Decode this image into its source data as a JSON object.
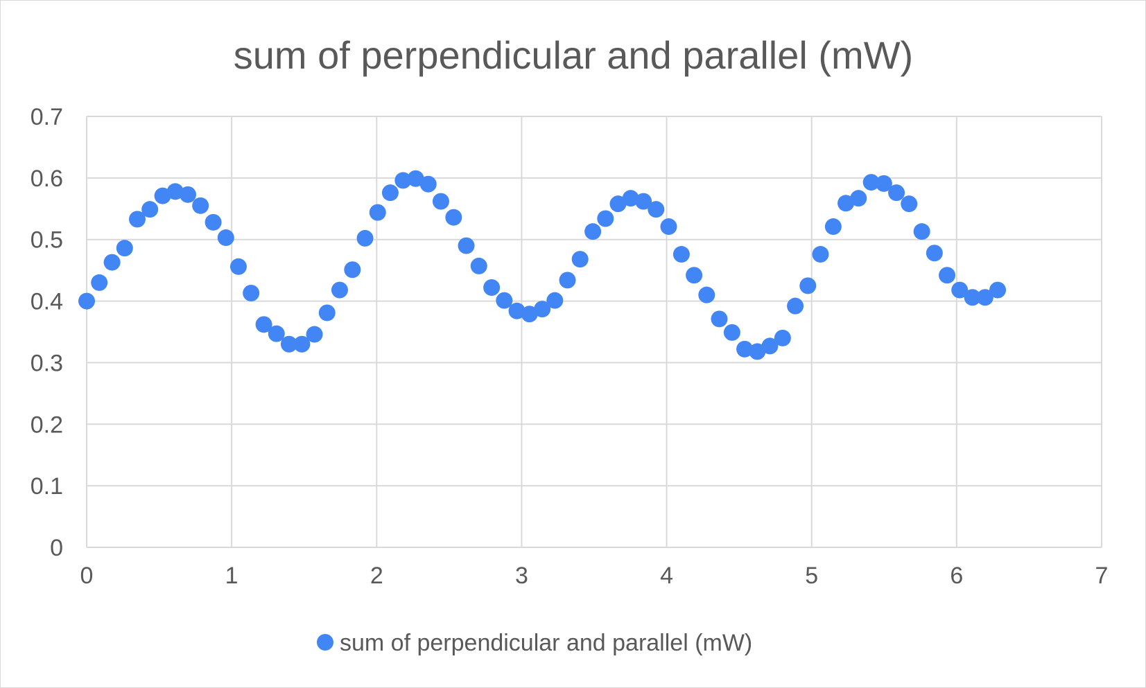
{
  "chart_data": {
    "type": "scatter",
    "title": "sum of perpendicular and parallel (mW)",
    "xlabel": "",
    "ylabel": "",
    "xlim": [
      0,
      7
    ],
    "ylim": [
      0,
      0.7
    ],
    "x_ticks": [
      "0",
      "1",
      "2",
      "3",
      "4",
      "5",
      "6",
      "7"
    ],
    "y_ticks": [
      "0",
      "0.1",
      "0.2",
      "0.3",
      "0.4",
      "0.5",
      "0.6",
      "0.7"
    ],
    "grid": true,
    "legend_position": "bottom",
    "colors": {
      "marker": "#4285F4",
      "grid": "#d9d9d9",
      "text": "#595959"
    },
    "series": [
      {
        "name": "sum of perpendicular and parallel (mW)",
        "x": [
          0,
          0.087,
          0.175,
          0.262,
          0.349,
          0.436,
          0.524,
          0.611,
          0.698,
          0.785,
          0.873,
          0.96,
          1.047,
          1.134,
          1.222,
          1.309,
          1.396,
          1.484,
          1.571,
          1.658,
          1.745,
          1.833,
          1.92,
          2.007,
          2.094,
          2.182,
          2.269,
          2.356,
          2.443,
          2.531,
          2.618,
          2.705,
          2.793,
          2.88,
          2.967,
          3.054,
          3.142,
          3.229,
          3.316,
          3.403,
          3.491,
          3.578,
          3.665,
          3.752,
          3.84,
          3.927,
          4.014,
          4.102,
          4.189,
          4.276,
          4.363,
          4.451,
          4.538,
          4.625,
          4.712,
          4.8,
          4.887,
          4.974,
          5.061,
          5.149,
          5.236,
          5.323,
          5.411,
          5.498,
          5.585,
          5.672,
          5.76,
          5.847,
          5.934,
          6.021,
          6.109,
          6.196,
          6.283
        ],
        "y": [
          0.4,
          0.43,
          0.463,
          0.486,
          0.533,
          0.549,
          0.571,
          0.578,
          0.573,
          0.555,
          0.528,
          0.503,
          0.456,
          0.413,
          0.362,
          0.347,
          0.33,
          0.33,
          0.346,
          0.381,
          0.418,
          0.451,
          0.502,
          0.544,
          0.576,
          0.596,
          0.599,
          0.59,
          0.562,
          0.536,
          0.49,
          0.457,
          0.422,
          0.401,
          0.384,
          0.379,
          0.387,
          0.401,
          0.434,
          0.468,
          0.513,
          0.534,
          0.558,
          0.567,
          0.562,
          0.549,
          0.521,
          0.476,
          0.442,
          0.41,
          0.371,
          0.349,
          0.322,
          0.318,
          0.327,
          0.34,
          0.392,
          0.425,
          0.476,
          0.521,
          0.559,
          0.567,
          0.593,
          0.591,
          0.576,
          0.558,
          0.513,
          0.478,
          0.442,
          0.418,
          0.406,
          0.406,
          0.418
        ]
      }
    ]
  }
}
